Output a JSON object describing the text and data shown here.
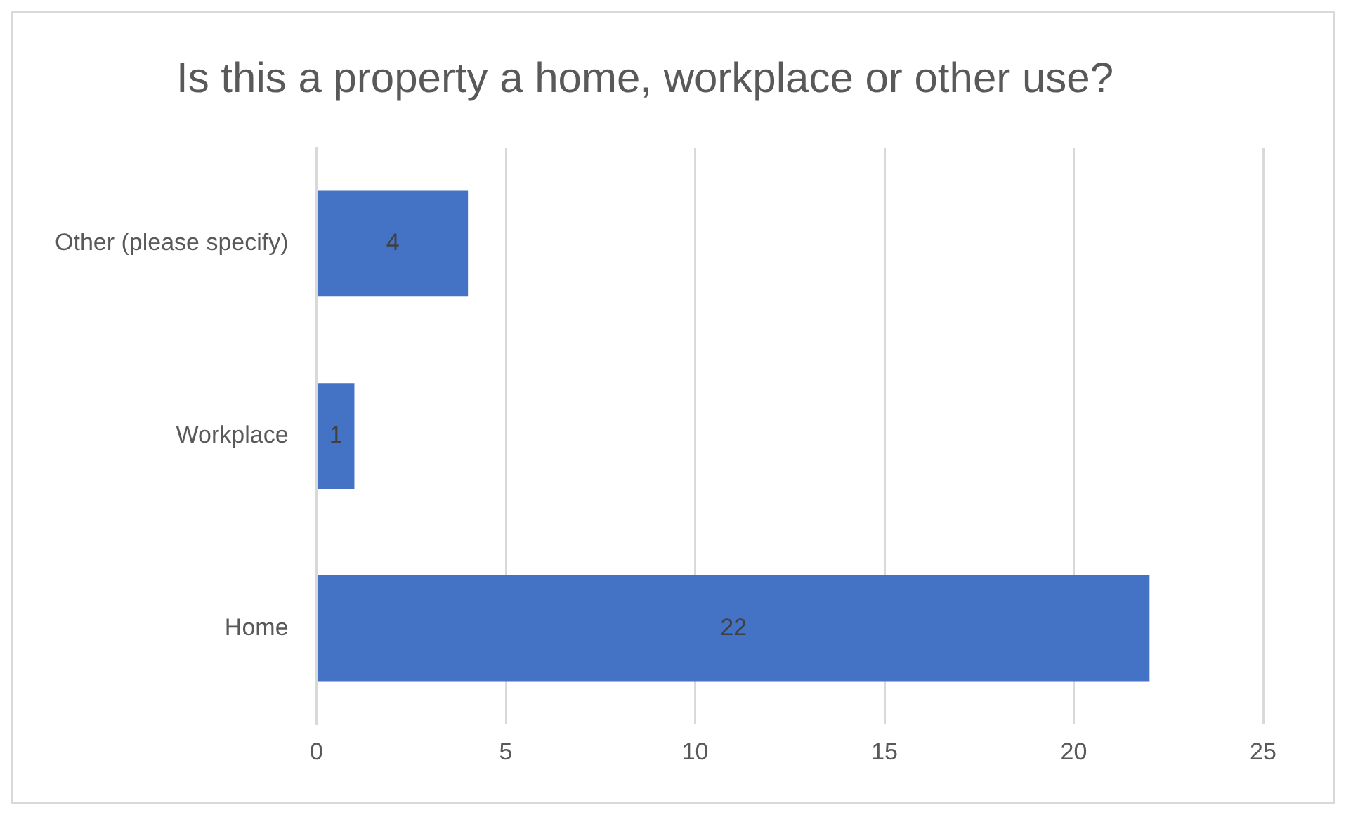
{
  "chart_data": {
    "type": "bar",
    "orientation": "horizontal",
    "title": "Is this a property a home, workplace or other use?",
    "categories": [
      "Other (please specify)",
      "Workplace",
      "Home"
    ],
    "values": [
      4,
      1,
      22
    ],
    "color": "#4472c4",
    "xlim": [
      0,
      25
    ],
    "xticks": [
      0,
      5,
      10,
      15,
      20,
      25
    ],
    "grid": "x",
    "data_labels": true
  }
}
